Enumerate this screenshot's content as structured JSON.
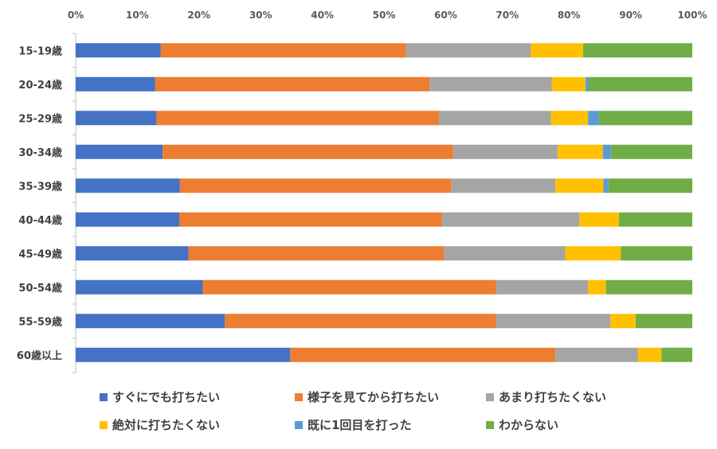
{
  "chart_data": {
    "type": "bar",
    "orientation": "horizontal",
    "stacked": "percent",
    "title": "",
    "xlabel": "",
    "ylabel": "",
    "xlim": [
      0,
      100
    ],
    "x_ticks": [
      "0%",
      "10%",
      "20%",
      "30%",
      "40%",
      "50%",
      "60%",
      "70%",
      "80%",
      "90%",
      "100%"
    ],
    "categories": [
      "15-19歳",
      "20-24歳",
      "25-29歳",
      "30-34歳",
      "35-39歳",
      "40-44歳",
      "45-49歳",
      "50-54歳",
      "55-59歳",
      "60歳以上"
    ],
    "series": [
      {
        "name": "すぐにでも打ちたい",
        "color": "#4472C4",
        "values": [
          13.8,
          12.9,
          13.1,
          14.1,
          16.9,
          16.8,
          18.3,
          20.6,
          24.2,
          34.8
        ]
      },
      {
        "name": "様子を見てから打ちたい",
        "color": "#ED7D31",
        "values": [
          39.8,
          44.5,
          45.8,
          47.1,
          44.0,
          42.6,
          41.4,
          47.6,
          44.0,
          43.0
        ]
      },
      {
        "name": "あまり打ちたくない",
        "color": "#A5A5A5",
        "values": [
          20.2,
          19.8,
          18.2,
          17.0,
          16.9,
          22.3,
          19.7,
          14.9,
          18.5,
          13.4
        ]
      },
      {
        "name": "絶対に打ちたくない",
        "color": "#FFC000",
        "values": [
          8.5,
          5.5,
          6.0,
          7.3,
          7.8,
          6.4,
          9.0,
          2.9,
          4.1,
          3.8
        ]
      },
      {
        "name": "既に1回目を打った",
        "color": "#5B9BD5",
        "values": [
          0.0,
          0.5,
          1.7,
          1.3,
          0.8,
          0.0,
          0.0,
          0.0,
          0.0,
          0.0
        ]
      },
      {
        "name": "わからない",
        "color": "#70AD47",
        "values": [
          17.7,
          16.8,
          15.2,
          13.2,
          13.6,
          11.9,
          11.6,
          14.0,
          9.2,
          5.0
        ]
      }
    ],
    "legend_position": "bottom",
    "grid": false
  }
}
